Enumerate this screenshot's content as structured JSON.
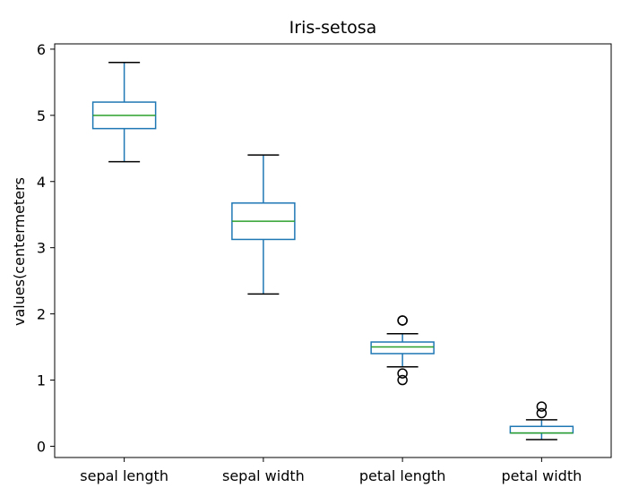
{
  "chart_data": {
    "type": "boxplot",
    "title": "Iris-setosa",
    "xlabel": "",
    "ylabel": "values(centermeters",
    "ylim": [
      -0.17,
      6.08
    ],
    "yticks": [
      0,
      1,
      2,
      3,
      4,
      5,
      6
    ],
    "ytick_labels": [
      "0",
      "1",
      "2",
      "3",
      "4",
      "5",
      "6"
    ],
    "grid": false,
    "legend": "none",
    "categories": [
      "sepal length",
      "sepal width",
      "petal length",
      "petal width"
    ],
    "boxes": [
      {
        "category": "sepal length",
        "whisker_low": 4.3,
        "q1": 4.8,
        "median": 5.0,
        "q3": 5.2,
        "whisker_high": 5.8,
        "outliers": []
      },
      {
        "category": "sepal width",
        "whisker_low": 2.3,
        "q1": 3.125,
        "median": 3.4,
        "q3": 3.675,
        "whisker_high": 4.4,
        "outliers": []
      },
      {
        "category": "petal length",
        "whisker_low": 1.2,
        "q1": 1.4,
        "median": 1.5,
        "q3": 1.575,
        "whisker_high": 1.7,
        "outliers": [
          1.0,
          1.1,
          1.9,
          1.9
        ]
      },
      {
        "category": "petal width",
        "whisker_low": 0.1,
        "q1": 0.2,
        "median": 0.2,
        "q3": 0.3,
        "whisker_high": 0.4,
        "outliers": [
          0.5,
          0.6
        ]
      }
    ],
    "colors": {
      "box": "#1f77b4",
      "median": "#2ca02c",
      "whisker": "#1f77b4",
      "cap": "#000000",
      "flier": "#000000",
      "axes": "#000000"
    }
  }
}
